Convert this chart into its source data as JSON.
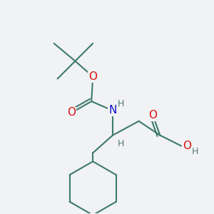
{
  "bg_color": "#f0f2f4",
  "bond_color": "#3d7a6a",
  "bond_lw": 1.5,
  "atom_colors": {
    "O": "#dd1111",
    "N": "#1111cc",
    "H": "#557a70",
    "C": "#3d7a6a"
  },
  "font_size_atom": 11,
  "font_size_H": 9,
  "figsize": [
    3.0,
    3.0
  ],
  "dpi": 100
}
